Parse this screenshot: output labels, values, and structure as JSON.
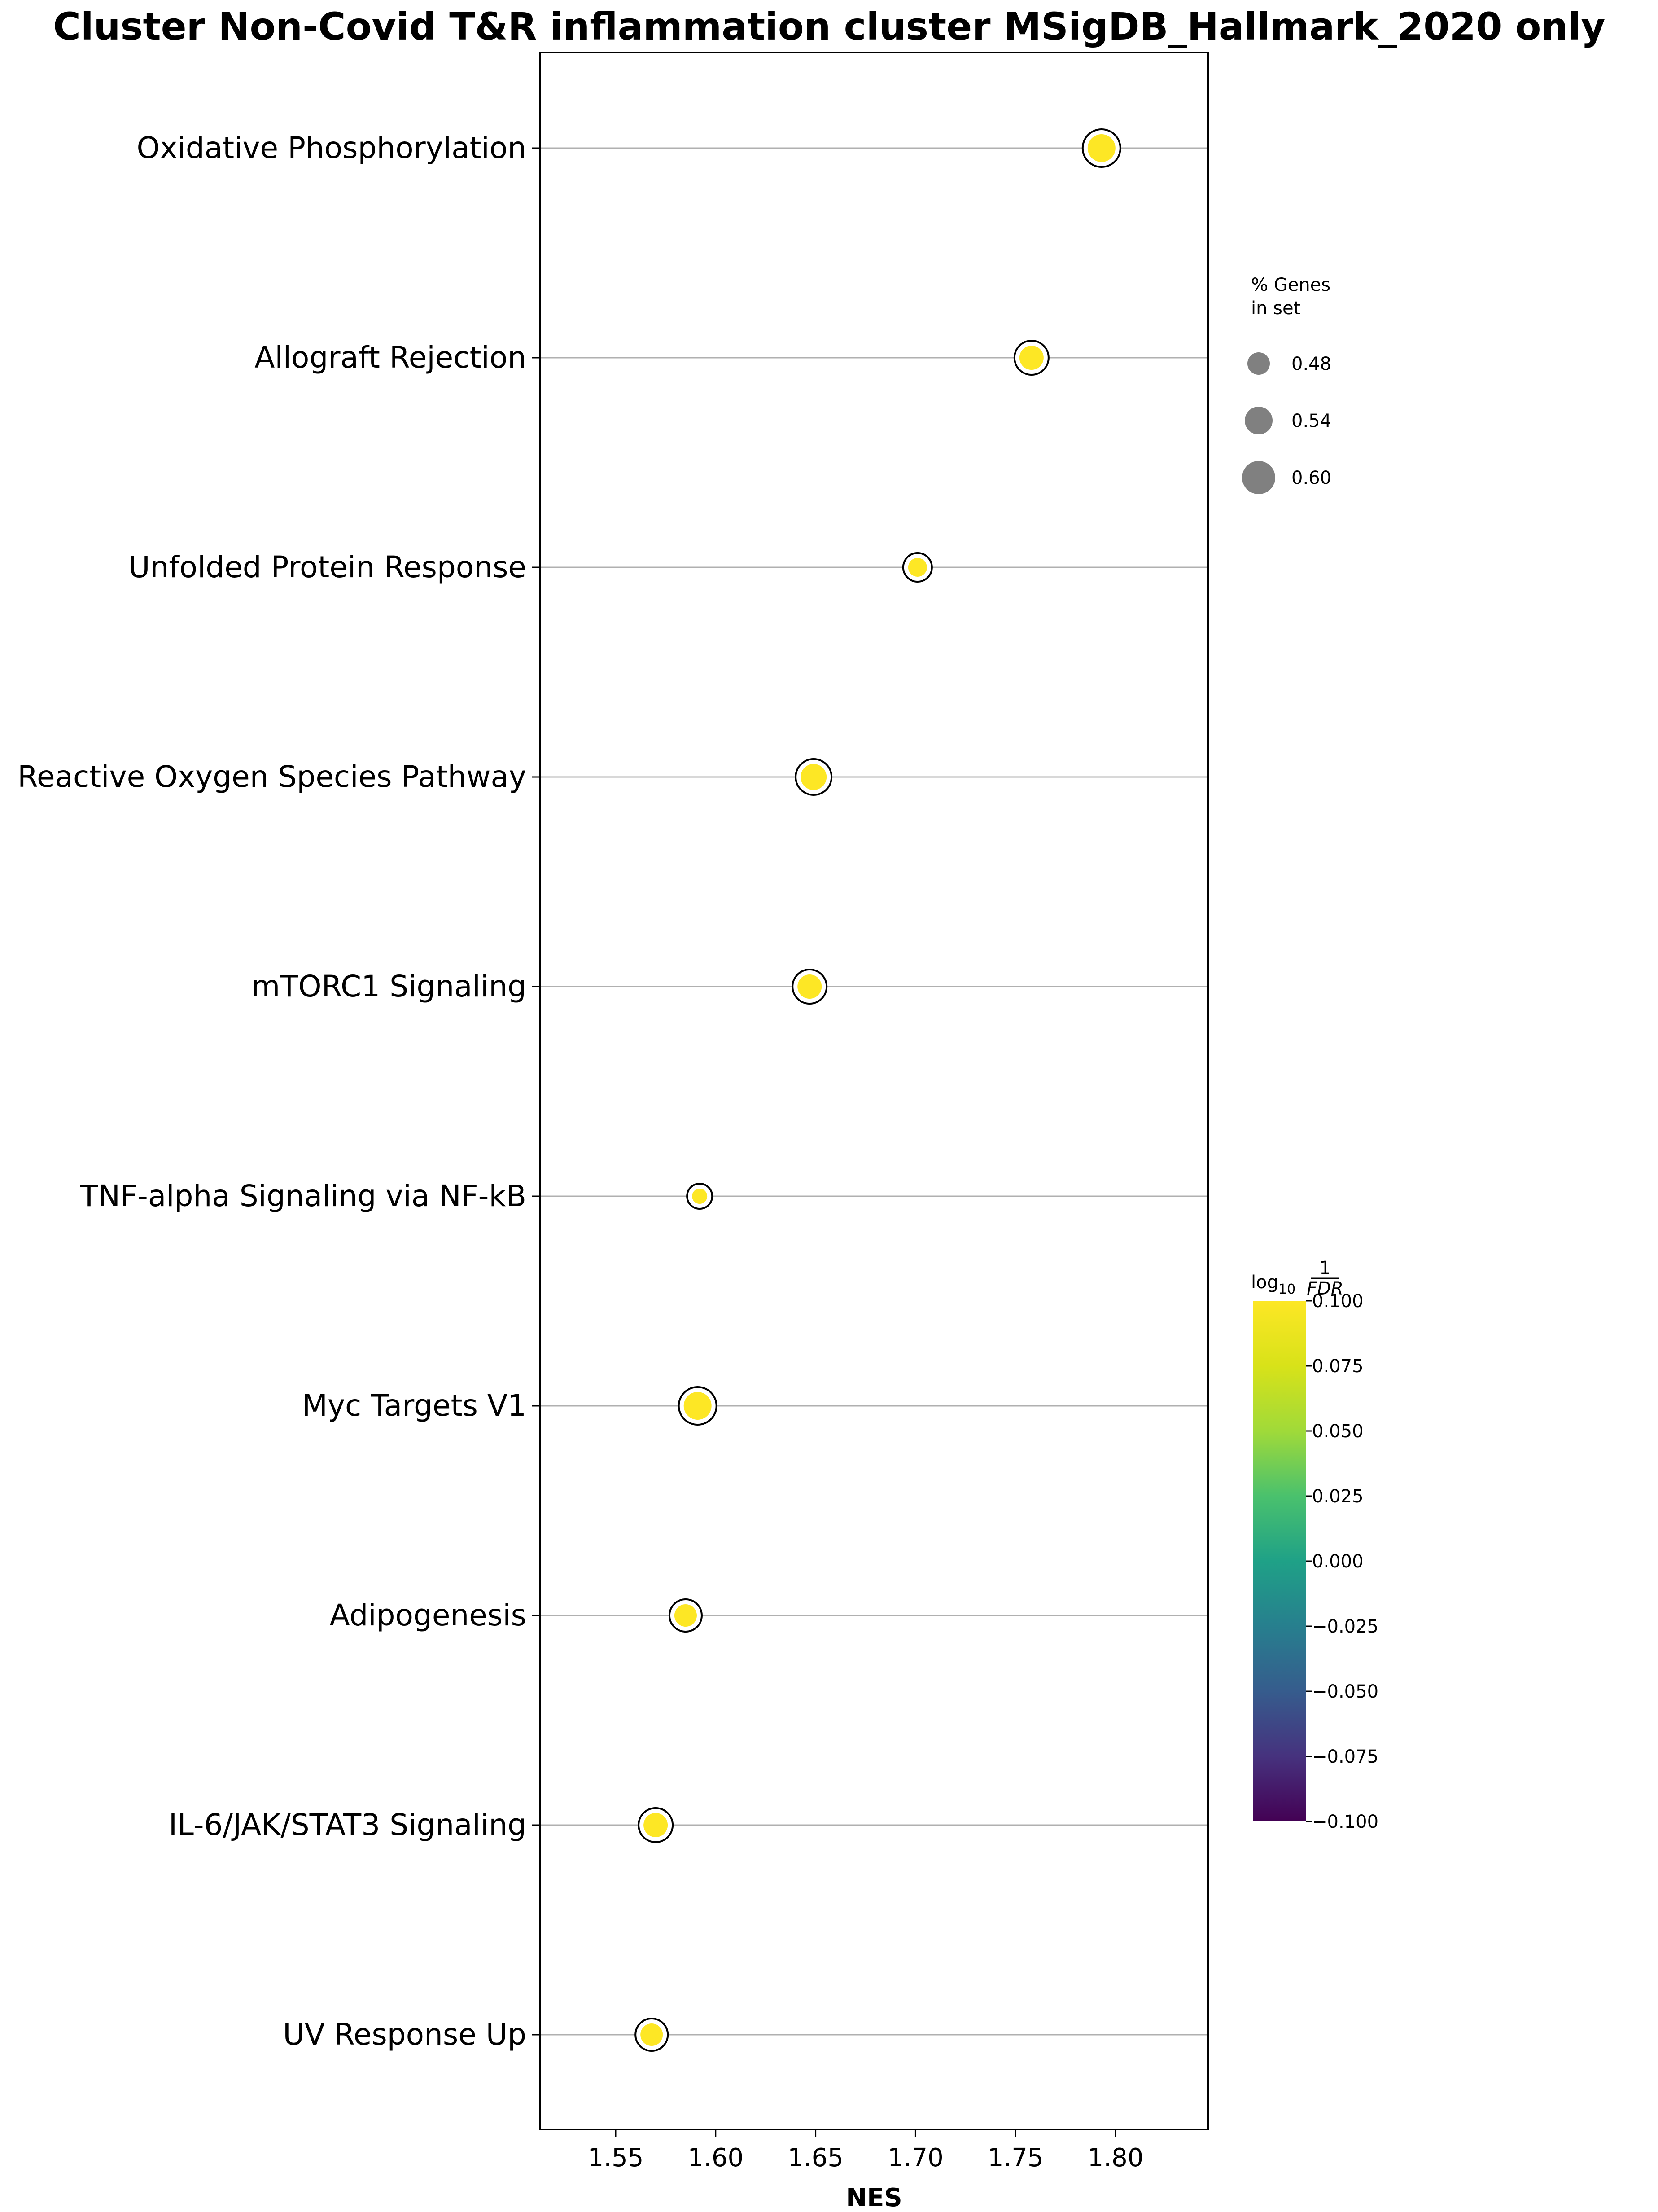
{
  "chart_data": {
    "type": "scatter",
    "title": "Cluster Non-Covid T&R inflammation cluster MSigDB_Hallmark_2020 only",
    "xlabel": "NES",
    "ylabel": "",
    "xlim": [
      1.51,
      1.85
    ],
    "xticks": [
      "1.55",
      "1.60",
      "1.65",
      "1.70",
      "1.75",
      "1.80"
    ],
    "grid": "horizontal lines at each category",
    "categories": [
      "Oxidative Phosphorylation",
      "Allograft Rejection",
      "Unfolded Protein Response",
      "Reactive Oxygen Species Pathway",
      "mTORC1 Signaling",
      "TNF-alpha Signaling via NF-kB",
      "Myc Targets V1",
      "Adipogenesis",
      "IL-6/JAK/STAT3 Signaling",
      "UV Response Up"
    ],
    "nes": [
      1.793,
      1.758,
      1.701,
      1.649,
      1.647,
      1.592,
      1.591,
      1.585,
      1.57,
      1.568
    ],
    "pct_genes_in_set": [
      0.6,
      0.56,
      0.5,
      0.58,
      0.56,
      0.46,
      0.6,
      0.54,
      0.56,
      0.54
    ],
    "log10_1_over_fdr": [
      0.1,
      0.1,
      0.1,
      0.1,
      0.1,
      0.1,
      0.1,
      0.1,
      0.1,
      0.1
    ],
    "point_color": "#fde725",
    "size_legend": {
      "title_line1": "% Genes",
      "title_line2": "in set",
      "entries": [
        "0.48",
        "0.54",
        "0.60"
      ],
      "values": [
        0.48,
        0.54,
        0.6
      ],
      "marker_color": "#808080",
      "placement": "right, upper"
    },
    "colorbar": {
      "label_main": "log",
      "label_sub": "10",
      "label_num": "1",
      "label_den": "FDR",
      "ticks": [
        "0.100",
        "0.075",
        "0.050",
        "0.025",
        "0.000",
        "−0.025",
        "−0.050",
        "−0.075",
        "−0.100"
      ],
      "range": [
        -0.1,
        0.1
      ],
      "colormap": "viridis",
      "placement": "right, lower"
    }
  }
}
